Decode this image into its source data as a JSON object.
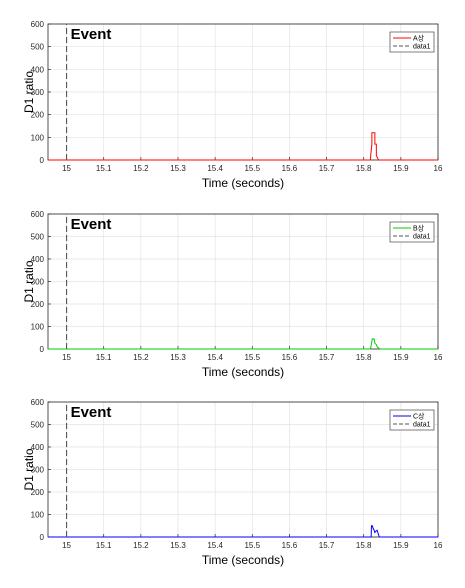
{
  "chart_data": [
    {
      "type": "line",
      "xlabel": "Time (seconds)",
      "ylabel": "D1 ratio",
      "xlim": [
        14.95,
        16.0
      ],
      "ylim": [
        0,
        600
      ],
      "xticks": [
        "15",
        "15.1",
        "15.2",
        "15.3",
        "15.4",
        "15.5",
        "15.6",
        "15.7",
        "15.8",
        "15.9",
        "16"
      ],
      "yticks": [
        "0",
        "100",
        "200",
        "300",
        "400",
        "500",
        "600"
      ],
      "grid": true,
      "legend_position": "top-right",
      "annotation": "Event",
      "event_x": 15.0,
      "series": [
        {
          "name": "A상",
          "color": "#ff0000",
          "x": [
            14.95,
            15.818,
            15.819,
            15.822,
            15.822,
            15.83,
            15.83,
            15.834,
            15.834,
            15.84,
            15.842,
            16.0
          ],
          "y": [
            0,
            0,
            25,
            70,
            120,
            120,
            70,
            70,
            20,
            0,
            0,
            0
          ]
        },
        {
          "name": "data1",
          "color": "#555555",
          "style": "dashed",
          "x": [
            15.0,
            15.0
          ],
          "y": [
            0,
            600
          ]
        }
      ]
    },
    {
      "type": "line",
      "xlabel": "Time (seconds)",
      "ylabel": "D1 ratio",
      "xlim": [
        14.95,
        16.0
      ],
      "ylim": [
        0,
        600
      ],
      "xticks": [
        "15",
        "15.1",
        "15.2",
        "15.3",
        "15.4",
        "15.5",
        "15.6",
        "15.7",
        "15.8",
        "15.9",
        "16"
      ],
      "yticks": [
        "0",
        "100",
        "200",
        "300",
        "400",
        "500",
        "600"
      ],
      "grid": true,
      "legend_position": "top-right",
      "annotation": "Event",
      "event_x": 15.0,
      "series": [
        {
          "name": "B상",
          "color": "#00cc00",
          "x": [
            14.95,
            15.818,
            15.82,
            15.823,
            15.828,
            15.83,
            15.834,
            15.836,
            15.84,
            15.843,
            16.0
          ],
          "y": [
            0,
            0,
            15,
            45,
            45,
            25,
            20,
            10,
            5,
            0,
            0
          ]
        },
        {
          "name": "data1",
          "color": "#555555",
          "style": "dashed",
          "x": [
            15.0,
            15.0
          ],
          "y": [
            0,
            600
          ]
        }
      ]
    },
    {
      "type": "line",
      "xlabel": "Time (seconds)",
      "ylabel": "D1 ratio",
      "xlim": [
        14.95,
        16.0
      ],
      "ylim": [
        0,
        600
      ],
      "xticks": [
        "15",
        "15.1",
        "15.2",
        "15.3",
        "15.4",
        "15.5",
        "15.6",
        "15.7",
        "15.8",
        "15.9",
        "16"
      ],
      "yticks": [
        "0",
        "100",
        "200",
        "300",
        "400",
        "500",
        "600"
      ],
      "grid": true,
      "legend_position": "top-right",
      "annotation": "Event",
      "event_x": 15.0,
      "series": [
        {
          "name": "C상",
          "color": "#0000ff",
          "x": [
            14.95,
            15.82,
            15.821,
            15.823,
            15.825,
            15.828,
            15.83,
            15.834,
            15.836,
            15.84,
            15.842,
            16.0
          ],
          "y": [
            0,
            0,
            50,
            50,
            40,
            30,
            20,
            28,
            30,
            10,
            0,
            0
          ]
        },
        {
          "name": "data1",
          "color": "#555555",
          "style": "dashed",
          "x": [
            15.0,
            15.0
          ],
          "y": [
            0,
            600
          ]
        }
      ]
    }
  ]
}
